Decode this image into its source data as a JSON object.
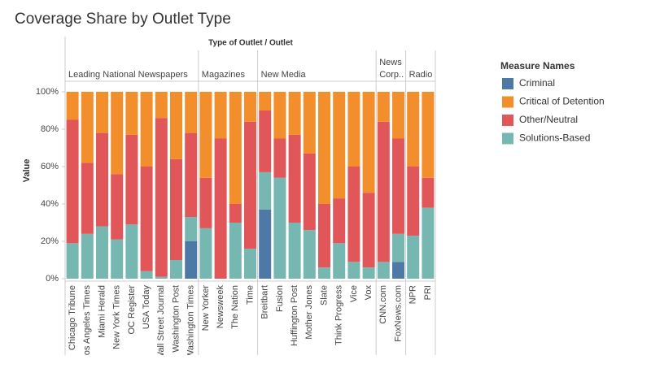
{
  "chart_data": {
    "type": "stacked_bar",
    "title": "Coverage Share by Outlet Type",
    "header": "Type of Outlet  /  Outlet",
    "y_label": "Value",
    "legend_title": "Measure Names",
    "groups": [
      {
        "label": "Leading National Newspapers",
        "categories": [
          "Chicago Tribune",
          "Los Angeles Times",
          "Miami Herald",
          "New York Times",
          "OC Register",
          "USA Today",
          "Wall Street Journal",
          "Washington Post",
          "Washington Times"
        ]
      },
      {
        "label": "Magazines",
        "categories": [
          "New Yorker",
          "Newsweek",
          "The Nation",
          "Time"
        ]
      },
      {
        "label": "New Media",
        "categories": [
          "Breitbart",
          "Fusion",
          "Huffington Post",
          "Mother Jones",
          "Slate",
          "Think Progress",
          "Vice",
          "Vox"
        ]
      },
      {
        "label": "News Corp..",
        "categories": [
          "CNN.com",
          "FoxNews.com"
        ]
      },
      {
        "label": "Radio",
        "categories": [
          "NPR",
          "PRI"
        ]
      }
    ],
    "series": [
      {
        "name": "Criminal",
        "color": "#4e79a7",
        "values": [
          0,
          0,
          0,
          0,
          0,
          0,
          0,
          0,
          20,
          0,
          0,
          0,
          0,
          37,
          0,
          0,
          0,
          0,
          0,
          0,
          0,
          0,
          9,
          0,
          0
        ]
      },
      {
        "name": "Critical of Detention",
        "color": "#f28e2b",
        "values": [
          15,
          38,
          22,
          44,
          23,
          40,
          14,
          36,
          22,
          46,
          25,
          60,
          16,
          10,
          25,
          23,
          33,
          60,
          57,
          40,
          54,
          16,
          25,
          40,
          46
        ]
      },
      {
        "name": "Other/Neutral",
        "color": "#e15759",
        "values": [
          66,
          38,
          50,
          35,
          48,
          56,
          85,
          54,
          45,
          27,
          75,
          10,
          68,
          33,
          21,
          47,
          41,
          34,
          24,
          51,
          40,
          75,
          51,
          37,
          16
        ]
      },
      {
        "name": "Solutions-Based",
        "color": "#76b7b2",
        "values": [
          19,
          24,
          28,
          21,
          29,
          4,
          1,
          10,
          13,
          27,
          0,
          30,
          16,
          20,
          54,
          30,
          26,
          6,
          19,
          9,
          6,
          9,
          15,
          23,
          38
        ]
      }
    ],
    "ylim": [
      0,
      100
    ],
    "yticks": [
      {
        "value": 0,
        "label": "0%"
      },
      {
        "value": 20,
        "label": "20%"
      },
      {
        "value": 40,
        "label": "40%"
      },
      {
        "value": 60,
        "label": "60%"
      },
      {
        "value": 80,
        "label": "80%"
      },
      {
        "value": 100,
        "label": "100%"
      }
    ]
  }
}
